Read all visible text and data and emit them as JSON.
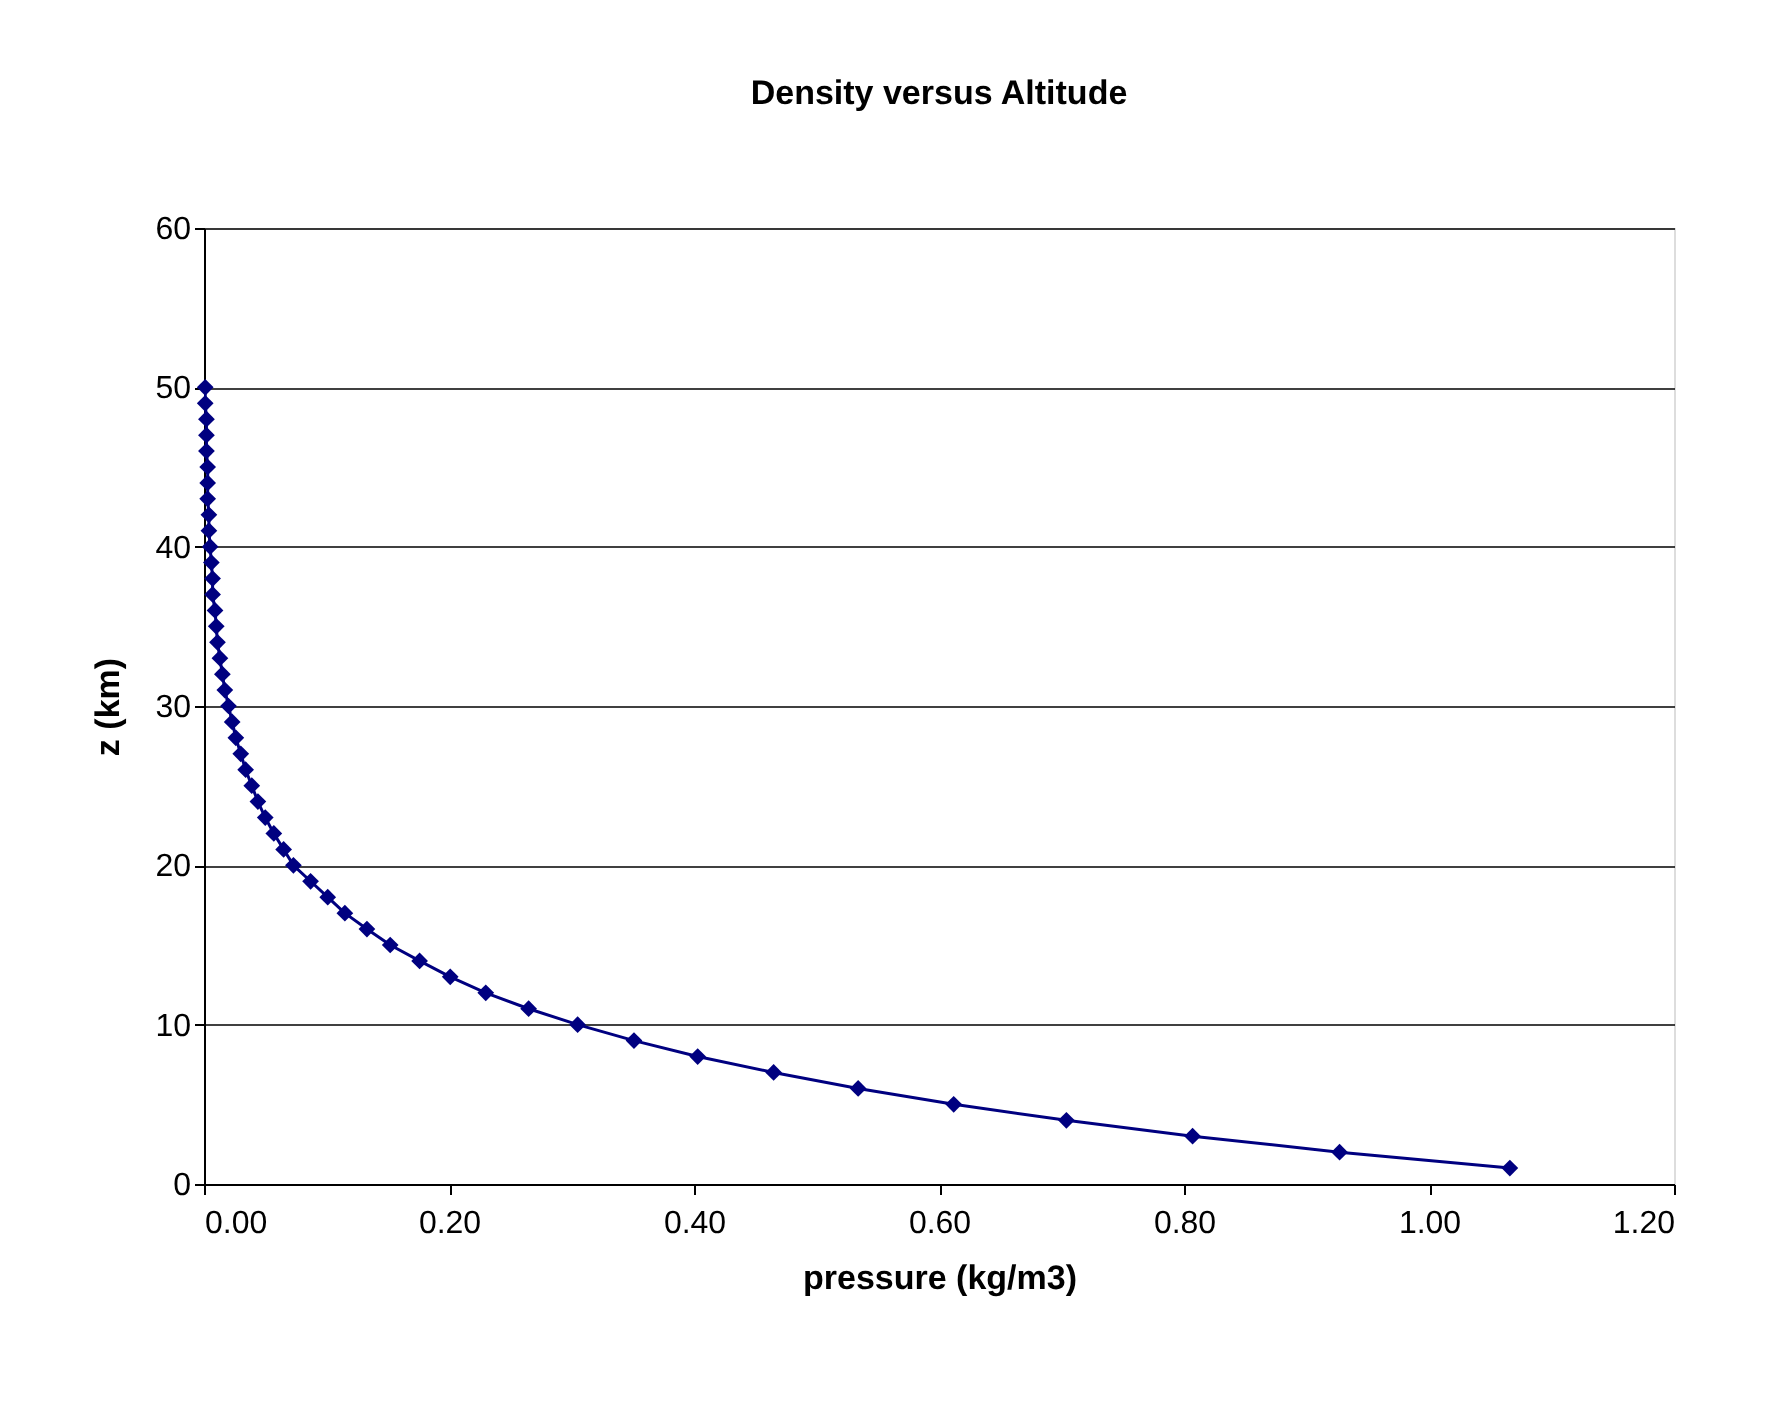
{
  "chart_data": {
    "type": "line",
    "title": "Density versus Altitude",
    "xlabel": "pressure (kg/m3)",
    "ylabel": "z (km)",
    "x": [
      1.066,
      0.927,
      0.807,
      0.704,
      0.612,
      0.534,
      0.465,
      0.403,
      0.351,
      0.305,
      0.265,
      0.23,
      0.201,
      0.176,
      0.152,
      0.133,
      0.115,
      0.101,
      0.087,
      0.073,
      0.065,
      0.057,
      0.05,
      0.044,
      0.039,
      0.034,
      0.03,
      0.026,
      0.023,
      0.02,
      0.017,
      0.015,
      0.013,
      0.011,
      0.01,
      0.009,
      0.007,
      0.007,
      0.006,
      0.005,
      0.004,
      0.004,
      0.003,
      0.003,
      0.003,
      0.002,
      0.002,
      0.002,
      0.001,
      0.001
    ],
    "series": [
      {
        "color": "#000080",
        "values": [
          1,
          2,
          3,
          4,
          5,
          6,
          7,
          8,
          9,
          10,
          11,
          12,
          13,
          14,
          15,
          16,
          17,
          18,
          19,
          20,
          21,
          22,
          23,
          24,
          25,
          26,
          27,
          28,
          29,
          30,
          31,
          32,
          33,
          34,
          35,
          36,
          37,
          38,
          39,
          40,
          41,
          42,
          43,
          44,
          45,
          46,
          47,
          48,
          49,
          50
        ]
      }
    ],
    "xlim": [
      0,
      1.2
    ],
    "xticks": [
      {
        "value": 0,
        "label": "0.00"
      },
      {
        "value": 0.2,
        "label": "0.20"
      },
      {
        "value": 0.4,
        "label": "0.40"
      },
      {
        "value": 0.6,
        "label": "0.60"
      },
      {
        "value": 0.8,
        "label": "0.80"
      },
      {
        "value": 1.0,
        "label": "1.00"
      },
      {
        "value": 1.2,
        "label": "1.20"
      }
    ],
    "ylim": [
      0,
      60
    ],
    "yticks": [
      0,
      10,
      20,
      30,
      40,
      50,
      60
    ],
    "grid": "y",
    "marker": "diamond",
    "line_style": "solid"
  }
}
